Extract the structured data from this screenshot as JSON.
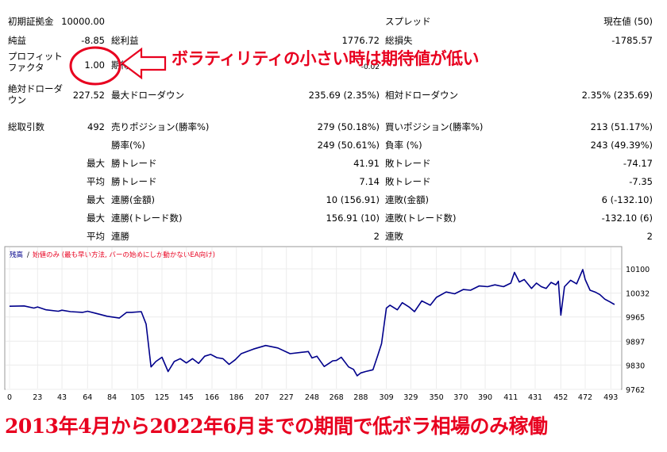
{
  "report": {
    "initial_deposit_label": "初期証拠金",
    "initial_deposit": "10000.00",
    "spread_label": "スプレッド",
    "spread": "現在値 (50)",
    "net_profit_label": "純益",
    "net_profit": "-8.85",
    "gross_profit_label": "総利益",
    "gross_profit": "1776.72",
    "gross_loss_label": "総損失",
    "gross_loss": "-1785.57",
    "profit_factor_label": "プロフィット ファクタ",
    "profit_factor": "1.00",
    "expected_payoff_label": "期待利得",
    "expected_payoff": "-0.02",
    "abs_drawdown_label": "絶対ドローダウン",
    "abs_drawdown": "227.52",
    "max_drawdown_label": "最大ドローダウン",
    "max_drawdown": "235.69 (2.35%)",
    "rel_drawdown_label": "相対ドローダウン",
    "rel_drawdown": "2.35% (235.69)",
    "total_trades_label": "総取引数",
    "total_trades": "492",
    "short_label": "売りポジション(勝率%)",
    "short": "279 (50.18%)",
    "long_label": "買いポジション(勝率%)",
    "long": "213 (51.17%)",
    "win_rate_label": "勝率(%)",
    "win_rate": "249 (50.61%)",
    "loss_rate_label": "負率 (%)",
    "loss_rate": "243 (49.39%)",
    "max_word": "最大",
    "avg_word": "平均",
    "largest_win_label": "勝トレード",
    "largest_win": "41.91",
    "largest_loss_label": "敗トレード",
    "largest_loss": "-74.17",
    "avg_win_label": "勝トレード",
    "avg_win": "7.14",
    "avg_loss_label": "敗トレード",
    "avg_loss": "-7.35",
    "max_consec_wins_money_label": "連勝(金額)",
    "max_consec_wins_money": "10 (156.91)",
    "max_consec_losses_money_label": "連敗(金額)",
    "max_consec_losses_money": "6 (-132.10)",
    "max_consec_profit_label": "連勝(トレード数)",
    "max_consec_profit": "156.91 (10)",
    "max_consec_loss_label": "連敗(トレード数)",
    "max_consec_loss": "-132.10 (6)",
    "avg_consec_wins_label": "連勝",
    "avg_consec_wins": "2",
    "avg_consec_losses_label": "連敗",
    "avg_consec_losses": "2"
  },
  "annotation": {
    "text": "ボラティリティの小さい時は期待値が低い",
    "color": "#e8001f"
  },
  "caption": "2013年4月から2022年6月までの期間で低ボラ相場のみ稼働",
  "chart_header": {
    "balance_label": "残高",
    "separator": "/",
    "note": "始値のみ (最も早い方法, バーの始めにしか動かないEA向け)"
  },
  "chart_data": {
    "type": "line",
    "series": [
      {
        "color": "#00008b",
        "x": [
          0,
          12,
          20,
          23,
          30,
          40,
          43,
          50,
          60,
          64,
          70,
          80,
          90,
          96,
          100,
          108,
          112,
          116,
          120,
          125,
          130,
          135,
          140,
          145,
          150,
          155,
          160,
          165,
          170,
          175,
          180,
          185,
          190,
          200,
          210,
          220,
          230,
          240,
          245,
          248,
          252,
          258,
          262,
          265,
          268,
          272,
          278,
          282,
          285,
          288,
          292,
          298,
          302,
          305,
          309,
          312,
          318,
          322,
          328,
          332,
          338,
          345,
          350,
          358,
          365,
          372,
          378,
          385,
          392,
          398,
          405,
          411,
          414,
          418,
          422,
          428,
          432,
          436,
          440,
          444,
          448,
          450,
          452,
          455,
          460,
          465,
          470,
          472,
          476,
          480,
          484,
          488,
          492,
          496
        ],
        "y": [
          9995,
          9996,
          9990,
          9993,
          9985,
          9981,
          9984,
          9980,
          9978,
          9981,
          9976,
          9967,
          9962,
          9978,
          9978,
          9980,
          9945,
          9825,
          9840,
          9852,
          9812,
          9840,
          9848,
          9836,
          9848,
          9835,
          9855,
          9860,
          9851,
          9848,
          9832,
          9845,
          9862,
          9875,
          9885,
          9878,
          9862,
          9866,
          9868,
          9850,
          9855,
          9826,
          9835,
          9842,
          9843,
          9852,
          9825,
          9818,
          9800,
          9808,
          9812,
          9817,
          9858,
          9890,
          9990,
          9998,
          9985,
          10005,
          9992,
          9980,
          10010,
          9998,
          10020,
          10035,
          10030,
          10042,
          10040,
          10052,
          10050,
          10055,
          10050,
          10060,
          10090,
          10063,
          10070,
          10045,
          10060,
          10050,
          10045,
          10062,
          10055,
          10065,
          9970,
          10050,
          10068,
          10058,
          10098,
          10070,
          10040,
          10035,
          10028,
          10015,
          10008,
          10000
        ]
      }
    ],
    "xticks": [
      0,
      23,
      43,
      64,
      84,
      105,
      125,
      145,
      166,
      186,
      207,
      227,
      248,
      268,
      288,
      309,
      329,
      350,
      370,
      390,
      411,
      431,
      452,
      472,
      493
    ],
    "yticks": [
      10100,
      10032,
      9965,
      9897,
      9830,
      9762
    ],
    "xlim": [
      0,
      500
    ],
    "ylim": [
      9762,
      10120
    ]
  }
}
